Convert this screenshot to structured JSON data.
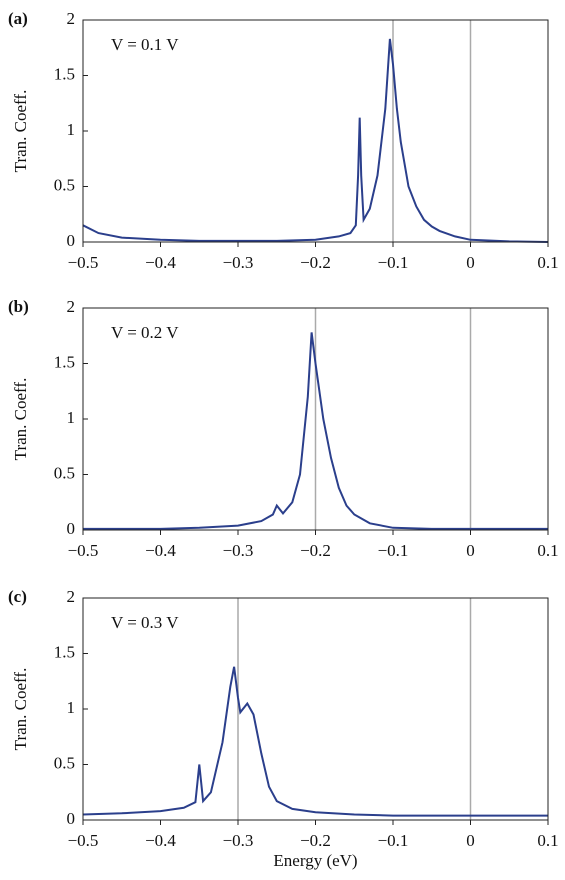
{
  "chart_data": [
    {
      "type": "line",
      "panel_label": "(a)",
      "annotation": "V = 0.1 V",
      "ylabel": "Tran. Coeff.",
      "x": [
        -0.5,
        -0.48,
        -0.45,
        -0.4,
        -0.35,
        -0.3,
        -0.25,
        -0.2,
        -0.17,
        -0.155,
        -0.148,
        -0.145,
        -0.143,
        -0.141,
        -0.138,
        -0.13,
        -0.12,
        -0.11,
        -0.104,
        -0.1,
        -0.095,
        -0.09,
        -0.08,
        -0.07,
        -0.06,
        -0.05,
        -0.04,
        -0.02,
        0,
        0.05,
        0.1
      ],
      "color": "#2b3f8c",
      "values": [
        0.15,
        0.08,
        0.04,
        0.02,
        0.01,
        0.01,
        0.01,
        0.02,
        0.05,
        0.08,
        0.15,
        0.6,
        1.12,
        0.6,
        0.2,
        0.3,
        0.6,
        1.2,
        1.83,
        1.6,
        1.2,
        0.9,
        0.5,
        0.32,
        0.2,
        0.14,
        0.1,
        0.05,
        0.02,
        0.005,
        0
      ],
      "vlines": [
        -0.1,
        0
      ],
      "xlim": [
        -0.5,
        0.1
      ],
      "ylim": [
        0,
        2
      ],
      "xticks": [
        {
          "value": -0.5,
          "label": "−0.5"
        },
        {
          "value": -0.4,
          "label": "−0.4"
        },
        {
          "value": -0.3,
          "label": "−0.3"
        },
        {
          "value": -0.2,
          "label": "−0.2"
        },
        {
          "value": -0.1,
          "label": "−0.1"
        },
        0,
        0.1
      ],
      "yticks": [
        0,
        0.5,
        1,
        1.5,
        2
      ]
    },
    {
      "type": "line",
      "panel_label": "(b)",
      "annotation": "V = 0.2 V",
      "ylabel": "Tran. Coeff.",
      "x": [
        -0.5,
        -0.45,
        -0.4,
        -0.35,
        -0.3,
        -0.27,
        -0.255,
        -0.25,
        -0.242,
        -0.23,
        -0.22,
        -0.21,
        -0.205,
        -0.2,
        -0.19,
        -0.18,
        -0.17,
        -0.16,
        -0.15,
        -0.13,
        -0.1,
        -0.05,
        0,
        0.1
      ],
      "color": "#2b3f8c",
      "values": [
        0.01,
        0.01,
        0.01,
        0.02,
        0.04,
        0.08,
        0.14,
        0.22,
        0.15,
        0.25,
        0.5,
        1.2,
        1.78,
        1.5,
        1.0,
        0.65,
        0.38,
        0.22,
        0.14,
        0.06,
        0.02,
        0.01,
        0.01,
        0.01
      ],
      "vlines": [
        -0.2,
        0
      ],
      "xlim": [
        -0.5,
        0.1
      ],
      "ylim": [
        0,
        2
      ],
      "xticks": [
        {
          "value": -0.5,
          "label": "−0.5"
        },
        {
          "value": -0.4,
          "label": "−0.4"
        },
        {
          "value": -0.3,
          "label": "−0.3"
        },
        {
          "value": -0.2,
          "label": "−0.2"
        },
        {
          "value": -0.1,
          "label": "−0.1"
        },
        0,
        0.1
      ],
      "yticks": [
        0,
        0.5,
        1,
        1.5,
        2
      ]
    },
    {
      "type": "line",
      "panel_label": "(c)",
      "annotation": "V = 0.3 V",
      "ylabel": "Tran. Coeff.",
      "xlabel": "Energy (eV)",
      "x": [
        -0.5,
        -0.45,
        -0.4,
        -0.37,
        -0.355,
        -0.35,
        -0.345,
        -0.335,
        -0.32,
        -0.31,
        -0.305,
        -0.3,
        -0.297,
        -0.288,
        -0.28,
        -0.27,
        -0.26,
        -0.25,
        -0.23,
        -0.2,
        -0.15,
        -0.1,
        0,
        0.1
      ],
      "color": "#2b3f8c",
      "values": [
        0.05,
        0.06,
        0.08,
        0.11,
        0.16,
        0.5,
        0.17,
        0.25,
        0.7,
        1.2,
        1.38,
        1.1,
        0.97,
        1.05,
        0.95,
        0.6,
        0.3,
        0.17,
        0.1,
        0.07,
        0.05,
        0.04,
        0.04,
        0.04
      ],
      "vlines": [
        -0.3,
        0
      ],
      "xlim": [
        -0.5,
        0.1
      ],
      "ylim": [
        0,
        2
      ],
      "xticks": [
        {
          "value": -0.5,
          "label": "−0.5"
        },
        {
          "value": -0.4,
          "label": "−0.4"
        },
        {
          "value": -0.3,
          "label": "−0.3"
        },
        {
          "value": -0.2,
          "label": "−0.2"
        },
        {
          "value": -0.1,
          "label": "−0.1"
        },
        0,
        0.1
      ],
      "yticks": [
        0,
        0.5,
        1,
        1.5,
        2
      ]
    }
  ]
}
